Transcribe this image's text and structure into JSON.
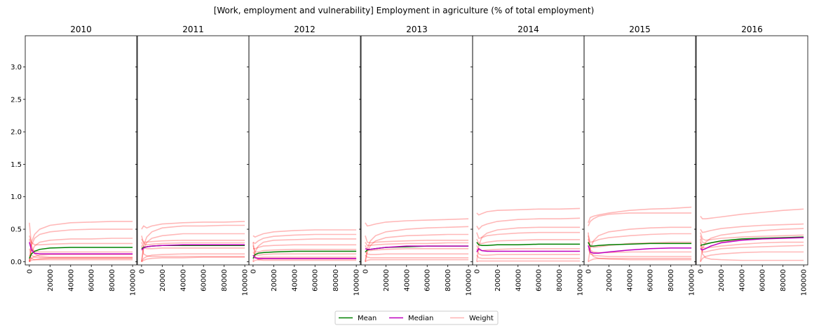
{
  "figure": {
    "title": "[Work, employment and vulnerability] Employment in agriculture (% of total employment)"
  },
  "legend": {
    "placement": "bottom-center",
    "items": [
      {
        "label": "Mean",
        "color": "#008000"
      },
      {
        "label": "Median",
        "color": "#bf00bf"
      },
      {
        "label": "Weight",
        "color": "#ffb3b3"
      }
    ]
  },
  "chart_data": {
    "type": "line",
    "shared_y": true,
    "ylim": [
      -0.05,
      3.48
    ],
    "y_ticks": [
      "0.0",
      "0.5",
      "1.0",
      "1.5",
      "2.0",
      "2.5",
      "3.0"
    ],
    "y_tick_values": [
      0,
      0.5,
      1.0,
      1.5,
      2.0,
      2.5,
      3.0
    ],
    "xlim": [
      -4000,
      104000
    ],
    "x_ticks": [
      "0",
      "20000",
      "40000",
      "60000",
      "80000",
      "100000"
    ],
    "x_tick_values": [
      0,
      20000,
      40000,
      60000,
      80000,
      100000
    ],
    "x": [
      0,
      2000,
      5000,
      10000,
      20000,
      40000,
      60000,
      80000,
      100000
    ],
    "colors": {
      "mean": "#008000",
      "median": "#bf00bf",
      "weight": "#ff0000"
    },
    "panels": [
      {
        "title": "2010",
        "mean": [
          0.05,
          0.12,
          0.16,
          0.19,
          0.21,
          0.22,
          0.22,
          0.22,
          0.22
        ],
        "median": [
          0.3,
          0.18,
          0.13,
          0.12,
          0.12,
          0.12,
          0.12,
          0.12,
          0.12
        ],
        "weights": [
          [
            0.0,
            0.3,
            0.42,
            0.5,
            0.56,
            0.6,
            0.61,
            0.62,
            0.62
          ],
          [
            0.0,
            0.25,
            0.36,
            0.42,
            0.46,
            0.49,
            0.5,
            0.5,
            0.5
          ],
          [
            0.0,
            0.15,
            0.24,
            0.3,
            0.33,
            0.35,
            0.35,
            0.36,
            0.36
          ],
          [
            0.4,
            0.3,
            0.26,
            0.26,
            0.27,
            0.28,
            0.28,
            0.28,
            0.28
          ],
          [
            0.35,
            0.2,
            0.16,
            0.15,
            0.15,
            0.15,
            0.15,
            0.15,
            0.15
          ],
          [
            0.0,
            0.05,
            0.08,
            0.1,
            0.11,
            0.11,
            0.11,
            0.11,
            0.11
          ],
          [
            0.2,
            0.1,
            0.07,
            0.06,
            0.06,
            0.06,
            0.06,
            0.06,
            0.06
          ],
          [
            0.1,
            0.05,
            0.03,
            0.03,
            0.03,
            0.03,
            0.03,
            0.03,
            0.03
          ],
          [
            0.6,
            0.25,
            0.12,
            0.08,
            0.07,
            0.07,
            0.07,
            0.07,
            0.07
          ],
          [
            0.0,
            0.02,
            0.03,
            0.04,
            0.05,
            0.05,
            0.05,
            0.05,
            0.05
          ]
        ]
      },
      {
        "title": "2011",
        "mean": [
          0.2,
          0.22,
          0.23,
          0.24,
          0.25,
          0.25,
          0.25,
          0.25,
          0.25
        ],
        "median": [
          0.18,
          0.21,
          0.23,
          0.24,
          0.25,
          0.26,
          0.26,
          0.26,
          0.26
        ],
        "weights": [
          [
            0.5,
            0.55,
            0.52,
            0.55,
            0.58,
            0.6,
            0.61,
            0.61,
            0.62
          ],
          [
            0.0,
            0.25,
            0.38,
            0.46,
            0.52,
            0.55,
            0.55,
            0.56,
            0.56
          ],
          [
            0.0,
            0.2,
            0.3,
            0.36,
            0.4,
            0.43,
            0.43,
            0.43,
            0.43
          ],
          [
            0.35,
            0.3,
            0.3,
            0.31,
            0.32,
            0.33,
            0.33,
            0.33,
            0.33
          ],
          [
            0.4,
            0.28,
            0.26,
            0.27,
            0.28,
            0.29,
            0.29,
            0.29,
            0.29
          ],
          [
            0.3,
            0.22,
            0.2,
            0.2,
            0.21,
            0.21,
            0.21,
            0.21,
            0.21
          ],
          [
            0.0,
            0.05,
            0.08,
            0.1,
            0.11,
            0.12,
            0.12,
            0.12,
            0.12
          ],
          [
            0.25,
            0.12,
            0.09,
            0.08,
            0.08,
            0.08,
            0.08,
            0.08,
            0.08
          ],
          [
            0.0,
            0.02,
            0.04,
            0.05,
            0.06,
            0.06,
            0.07,
            0.07,
            0.07
          ]
        ]
      },
      {
        "title": "2012",
        "mean": [
          0.05,
          0.11,
          0.13,
          0.14,
          0.15,
          0.16,
          0.16,
          0.16,
          0.16
        ],
        "median": [
          0.1,
          0.06,
          0.05,
          0.05,
          0.05,
          0.05,
          0.05,
          0.05,
          0.05
        ],
        "weights": [
          [
            0.4,
            0.38,
            0.4,
            0.43,
            0.46,
            0.48,
            0.49,
            0.49,
            0.49
          ],
          [
            0.3,
            0.28,
            0.32,
            0.36,
            0.39,
            0.41,
            0.42,
            0.42,
            0.42
          ],
          [
            0.0,
            0.15,
            0.24,
            0.3,
            0.33,
            0.34,
            0.35,
            0.35,
            0.35
          ],
          [
            0.2,
            0.2,
            0.22,
            0.24,
            0.25,
            0.26,
            0.26,
            0.26,
            0.26
          ],
          [
            0.25,
            0.15,
            0.15,
            0.17,
            0.18,
            0.19,
            0.19,
            0.19,
            0.19
          ],
          [
            0.15,
            0.1,
            0.1,
            0.11,
            0.12,
            0.12,
            0.12,
            0.12,
            0.12
          ],
          [
            0.1,
            0.06,
            0.06,
            0.07,
            0.07,
            0.07,
            0.07,
            0.07,
            0.07
          ],
          [
            0.0,
            0.02,
            0.03,
            0.04,
            0.04,
            0.04,
            0.04,
            0.04,
            0.04
          ],
          [
            0.3,
            0.08,
            0.03,
            0.02,
            0.02,
            0.02,
            0.02,
            0.02,
            0.02
          ]
        ]
      },
      {
        "title": "2013",
        "mean": [
          0.15,
          0.18,
          0.19,
          0.2,
          0.22,
          0.23,
          0.24,
          0.24,
          0.24
        ],
        "median": [
          0.2,
          0.19,
          0.19,
          0.2,
          0.22,
          0.24,
          0.24,
          0.24,
          0.24
        ],
        "weights": [
          [
            0.6,
            0.55,
            0.56,
            0.58,
            0.61,
            0.63,
            0.64,
            0.65,
            0.66
          ],
          [
            0.0,
            0.2,
            0.32,
            0.4,
            0.46,
            0.5,
            0.52,
            0.53,
            0.54
          ],
          [
            0.0,
            0.15,
            0.25,
            0.32,
            0.37,
            0.4,
            0.41,
            0.42,
            0.42
          ],
          [
            0.4,
            0.3,
            0.29,
            0.3,
            0.31,
            0.32,
            0.33,
            0.33,
            0.33
          ],
          [
            0.3,
            0.25,
            0.25,
            0.26,
            0.27,
            0.28,
            0.28,
            0.29,
            0.29
          ],
          [
            0.25,
            0.18,
            0.17,
            0.18,
            0.19,
            0.2,
            0.2,
            0.2,
            0.2
          ],
          [
            0.15,
            0.12,
            0.11,
            0.11,
            0.12,
            0.12,
            0.12,
            0.12,
            0.12
          ],
          [
            0.1,
            0.07,
            0.06,
            0.06,
            0.06,
            0.06,
            0.06,
            0.06,
            0.06
          ],
          [
            0.0,
            0.02,
            0.03,
            0.03,
            0.03,
            0.03,
            0.03,
            0.03,
            0.03
          ]
        ]
      },
      {
        "title": "2014",
        "mean": [
          0.3,
          0.26,
          0.25,
          0.25,
          0.26,
          0.26,
          0.27,
          0.27,
          0.27
        ],
        "median": [
          0.15,
          0.2,
          0.17,
          0.16,
          0.16,
          0.16,
          0.16,
          0.16,
          0.16
        ],
        "weights": [
          [
            0.75,
            0.72,
            0.74,
            0.77,
            0.79,
            0.8,
            0.81,
            0.81,
            0.82
          ],
          [
            0.55,
            0.5,
            0.55,
            0.58,
            0.62,
            0.65,
            0.66,
            0.66,
            0.67
          ],
          [
            0.0,
            0.25,
            0.38,
            0.44,
            0.49,
            0.52,
            0.53,
            0.53,
            0.53
          ],
          [
            0.45,
            0.36,
            0.37,
            0.4,
            0.42,
            0.44,
            0.45,
            0.45,
            0.45
          ],
          [
            0.35,
            0.28,
            0.28,
            0.3,
            0.32,
            0.33,
            0.34,
            0.34,
            0.34
          ],
          [
            0.25,
            0.18,
            0.17,
            0.18,
            0.19,
            0.2,
            0.2,
            0.2,
            0.2
          ],
          [
            0.2,
            0.12,
            0.1,
            0.1,
            0.11,
            0.11,
            0.11,
            0.11,
            0.11
          ],
          [
            0.1,
            0.06,
            0.05,
            0.05,
            0.05,
            0.05,
            0.05,
            0.05,
            0.05
          ],
          [
            0.0,
            0.01,
            0.01,
            0.01,
            0.01,
            0.01,
            0.01,
            0.01,
            0.01
          ]
        ]
      },
      {
        "title": "2015",
        "mean": [
          0.3,
          0.24,
          0.24,
          0.25,
          0.26,
          0.27,
          0.28,
          0.28,
          0.28
        ],
        "median": [
          0.25,
          0.15,
          0.13,
          0.13,
          0.15,
          0.18,
          0.2,
          0.21,
          0.21
        ],
        "weights": [
          [
            0.6,
            0.68,
            0.7,
            0.72,
            0.75,
            0.79,
            0.81,
            0.82,
            0.84
          ],
          [
            0.55,
            0.62,
            0.66,
            0.7,
            0.73,
            0.75,
            0.75,
            0.75,
            0.75
          ],
          [
            0.0,
            0.2,
            0.32,
            0.4,
            0.46,
            0.5,
            0.52,
            0.53,
            0.53
          ],
          [
            0.4,
            0.3,
            0.31,
            0.34,
            0.37,
            0.4,
            0.42,
            0.43,
            0.43
          ],
          [
            0.35,
            0.24,
            0.22,
            0.23,
            0.25,
            0.28,
            0.29,
            0.3,
            0.3
          ],
          [
            0.3,
            0.18,
            0.15,
            0.14,
            0.14,
            0.15,
            0.15,
            0.15,
            0.15
          ],
          [
            0.2,
            0.12,
            0.1,
            0.09,
            0.08,
            0.08,
            0.08,
            0.08,
            0.08
          ],
          [
            0.45,
            0.15,
            0.08,
            0.05,
            0.04,
            0.03,
            0.03,
            0.03,
            0.03
          ],
          [
            0.0,
            0.02,
            0.04,
            0.05,
            0.05,
            0.05,
            0.05,
            0.05,
            0.05
          ]
        ]
      },
      {
        "title": "2016",
        "mean": [
          0.25,
          0.26,
          0.27,
          0.29,
          0.32,
          0.35,
          0.36,
          0.37,
          0.38
        ],
        "median": [
          0.2,
          0.18,
          0.2,
          0.24,
          0.29,
          0.33,
          0.35,
          0.36,
          0.37
        ],
        "weights": [
          [
            0.7,
            0.66,
            0.66,
            0.67,
            0.69,
            0.73,
            0.76,
            0.79,
            0.81
          ],
          [
            0.5,
            0.45,
            0.46,
            0.48,
            0.51,
            0.54,
            0.56,
            0.57,
            0.58
          ],
          [
            0.0,
            0.2,
            0.3,
            0.36,
            0.41,
            0.45,
            0.48,
            0.5,
            0.51
          ],
          [
            0.45,
            0.35,
            0.33,
            0.34,
            0.36,
            0.38,
            0.39,
            0.4,
            0.41
          ],
          [
            0.4,
            0.3,
            0.28,
            0.29,
            0.31,
            0.34,
            0.36,
            0.37,
            0.38
          ],
          [
            0.3,
            0.22,
            0.21,
            0.22,
            0.24,
            0.27,
            0.29,
            0.3,
            0.3
          ],
          [
            0.25,
            0.15,
            0.15,
            0.17,
            0.2,
            0.22,
            0.23,
            0.24,
            0.25
          ],
          [
            0.0,
            0.05,
            0.08,
            0.1,
            0.12,
            0.14,
            0.15,
            0.15,
            0.15
          ],
          [
            0.35,
            0.12,
            0.06,
            0.04,
            0.03,
            0.02,
            0.02,
            0.02,
            0.02
          ]
        ]
      }
    ]
  }
}
